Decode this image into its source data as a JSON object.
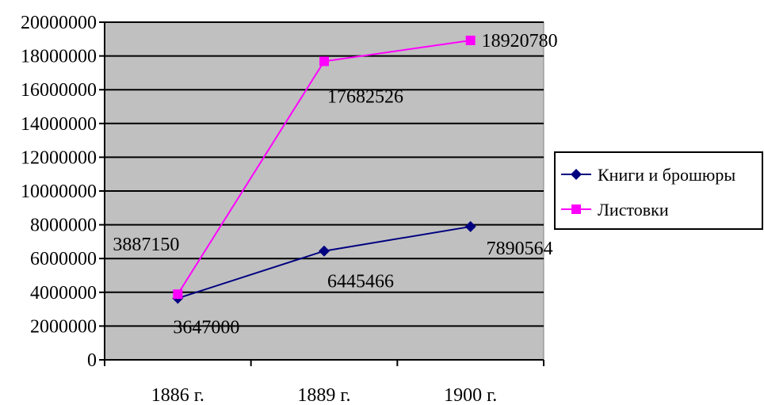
{
  "chart_data": {
    "type": "line",
    "categories": [
      "1886 г.",
      "1889 г.",
      "1900 г."
    ],
    "series": [
      {
        "name": "Книги и брошюры",
        "values": [
          3647000,
          6445466,
          7890564
        ],
        "labels": [
          "3647000",
          "6445466",
          "7890564"
        ],
        "color": "#000080",
        "marker": "diamond"
      },
      {
        "name": "Листовки",
        "values": [
          3887150,
          17682526,
          18920780
        ],
        "labels": [
          "3887150",
          "17682526",
          "18920780"
        ],
        "color": "#FF00FF",
        "marker": "square"
      }
    ],
    "ylim": [
      0,
      20000000
    ],
    "yticks": [
      0,
      2000000,
      4000000,
      6000000,
      8000000,
      10000000,
      12000000,
      14000000,
      16000000,
      18000000,
      20000000
    ],
    "ytick_labels": [
      "0",
      "2000000",
      "4000000",
      "6000000",
      "8000000",
      "10000000",
      "12000000",
      "14000000",
      "16000000",
      "18000000",
      "20000000"
    ],
    "grid": true,
    "plot_background": "#C0C0C0",
    "gridline_color": "#000000",
    "legend_position": "right",
    "title": "",
    "xlabel": "",
    "ylabel": ""
  }
}
